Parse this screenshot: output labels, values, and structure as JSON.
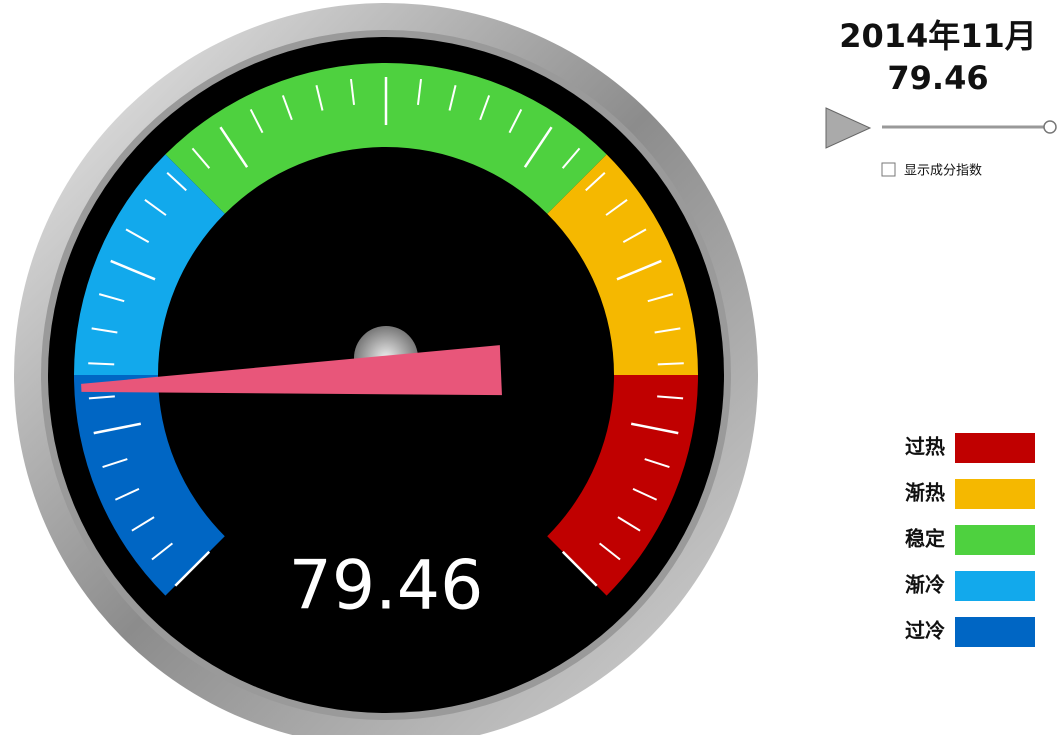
{
  "chart_data": {
    "type": "gauge",
    "title": "2014年11月",
    "value": 79.46,
    "min": 70,
    "max": 130,
    "bands": [
      {
        "name": "过热",
        "color": "#c00000",
        "from": 120,
        "to": 130
      },
      {
        "name": "渐热",
        "color": "#f5b800",
        "from": 110,
        "to": 120
      },
      {
        "name": "稳定",
        "color": "#4ed13f",
        "from": 90,
        "to": 110
      },
      {
        "name": "渐冷",
        "color": "#12a9ec",
        "from": 80,
        "to": 90
      },
      {
        "name": "过冷",
        "color": "#0066c4",
        "from": 70,
        "to": 80
      }
    ],
    "checkbox_label": "显示成分指数"
  }
}
